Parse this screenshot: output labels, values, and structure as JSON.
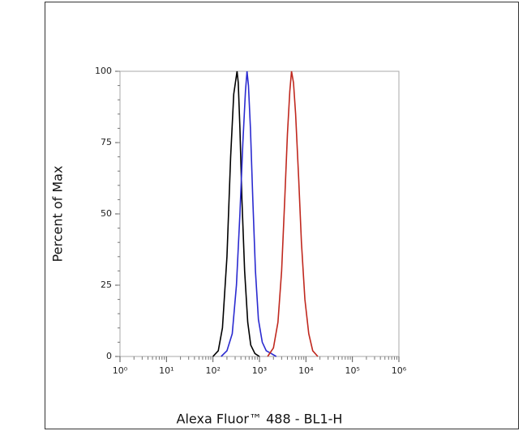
{
  "chart_data": {
    "type": "line",
    "x_label": "Alexa Fluor™ 488 - BL1-H",
    "y_label": "Percent of Max",
    "xscale": "log",
    "xlim": [
      1,
      1000000
    ],
    "xticks": [
      {
        "value": 1,
        "label": "10⁰"
      },
      {
        "value": 10,
        "label": "10¹"
      },
      {
        "value": 100,
        "label": "10²"
      },
      {
        "value": 1000,
        "label": "10³"
      },
      {
        "value": 10000,
        "label": "10⁴"
      },
      {
        "value": 100000,
        "label": "10⁵"
      },
      {
        "value": 1000000,
        "label": "10⁶"
      }
    ],
    "ylim": [
      0,
      100
    ],
    "yticks": [
      0,
      25,
      50,
      75,
      100
    ],
    "series": [
      {
        "color": "#000000",
        "x": [
          100,
          130,
          160,
          200,
          240,
          280,
          310,
          330,
          350,
          380,
          420,
          480,
          560,
          650,
          800,
          1000
        ],
        "values": [
          0,
          2,
          10,
          35,
          70,
          92,
          97,
          100,
          96,
          80,
          55,
          30,
          12,
          4,
          1,
          0
        ]
      },
      {
        "color": "#2a2ad0",
        "x": [
          150,
          200,
          260,
          320,
          380,
          440,
          500,
          540,
          580,
          640,
          720,
          820,
          950,
          1150,
          1400,
          1800,
          2300
        ],
        "values": [
          0,
          2,
          8,
          25,
          50,
          75,
          93,
          100,
          95,
          80,
          55,
          30,
          13,
          5,
          2,
          1,
          0
        ]
      },
      {
        "color": "#c0281e",
        "x": [
          1500,
          2000,
          2500,
          3000,
          3500,
          4000,
          4500,
          4900,
          5400,
          6000,
          7000,
          8000,
          9500,
          11500,
          14000,
          18000
        ],
        "values": [
          0,
          3,
          12,
          30,
          55,
          78,
          93,
          100,
          96,
          85,
          62,
          40,
          20,
          8,
          2,
          0
        ]
      }
    ]
  }
}
